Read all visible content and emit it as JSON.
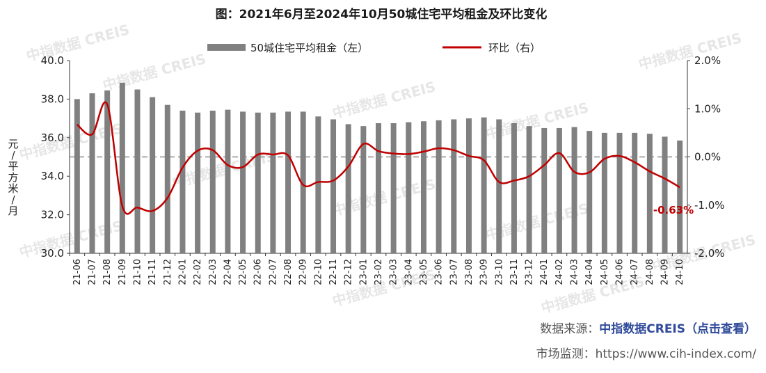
{
  "title": "图：2021年6月至2024年10月50城住宅平均租金及环比变化",
  "legend": {
    "bar_label": "50城住宅平均租金（左）",
    "line_label": "环比（右）"
  },
  "y_axis_left_label": [
    "元",
    "/",
    "平",
    "方",
    "米",
    "/",
    "月"
  ],
  "watermark": "中指数据 CREIS",
  "annotation": "-0.63%",
  "footer": {
    "source_prefix": "数据来源：",
    "source_link": "中指数据CREIS（点击查看）",
    "monitor_prefix": "市场监测：",
    "monitor_url": "https://www.cih-index.com/"
  },
  "colors": {
    "bar": "#808080",
    "line": "#c00000",
    "zero_line": "#8c8c8c"
  },
  "chart_data": {
    "type": "bar+line",
    "categories": [
      "21-06",
      "21-07",
      "21-08",
      "21-09",
      "21-10",
      "21-11",
      "21-12",
      "22-01",
      "22-02",
      "22-03",
      "22-04",
      "22-05",
      "22-06",
      "22-07",
      "22-08",
      "22-09",
      "22-10",
      "22-11",
      "22-12",
      "23-01",
      "23-02",
      "23-03",
      "23-04",
      "23-05",
      "23-06",
      "23-07",
      "23-08",
      "23-09",
      "23-10",
      "23-11",
      "23-12",
      "24-01",
      "24-02",
      "24-03",
      "24-04",
      "24-05",
      "24-06",
      "24-07",
      "24-08",
      "24-09",
      "24-10"
    ],
    "series": [
      {
        "name": "50城住宅平均租金（左）",
        "type": "bar",
        "axis": "left",
        "values": [
          38.0,
          38.3,
          38.45,
          38.85,
          38.5,
          38.1,
          37.7,
          37.4,
          37.3,
          37.4,
          37.45,
          37.35,
          37.3,
          37.3,
          37.35,
          37.35,
          37.1,
          36.95,
          36.7,
          36.6,
          36.75,
          36.75,
          36.8,
          36.85,
          36.9,
          36.95,
          37.0,
          37.05,
          36.95,
          36.75,
          36.6,
          36.5,
          36.5,
          36.55,
          36.35,
          36.25,
          36.25,
          36.25,
          36.2,
          36.05,
          35.85
        ]
      },
      {
        "name": "环比（右）",
        "type": "line",
        "axis": "right",
        "unit": "%",
        "values": [
          0.67,
          0.47,
          1.09,
          -1.02,
          -1.05,
          -1.12,
          -0.85,
          -0.22,
          0.13,
          0.14,
          -0.17,
          -0.21,
          0.05,
          0.05,
          0.03,
          -0.58,
          -0.52,
          -0.49,
          -0.2,
          0.27,
          0.12,
          0.07,
          0.06,
          0.11,
          0.18,
          0.14,
          0.02,
          -0.07,
          -0.52,
          -0.49,
          -0.4,
          -0.17,
          0.08,
          -0.31,
          -0.32,
          -0.04,
          0.02,
          -0.11,
          -0.3,
          -0.45,
          -0.63
        ]
      }
    ],
    "y_left": {
      "min": 30.0,
      "max": 40.0,
      "ticks": [
        "30.0",
        "32.0",
        "34.0",
        "36.0",
        "38.0",
        "40.0"
      ]
    },
    "y_right": {
      "min": -2.0,
      "max": 2.0,
      "ticks": [
        "-2.0%",
        "-1.0%",
        "0.0%",
        "1.0%",
        "2.0%"
      ]
    },
    "legend_position": "top",
    "grid": false
  }
}
